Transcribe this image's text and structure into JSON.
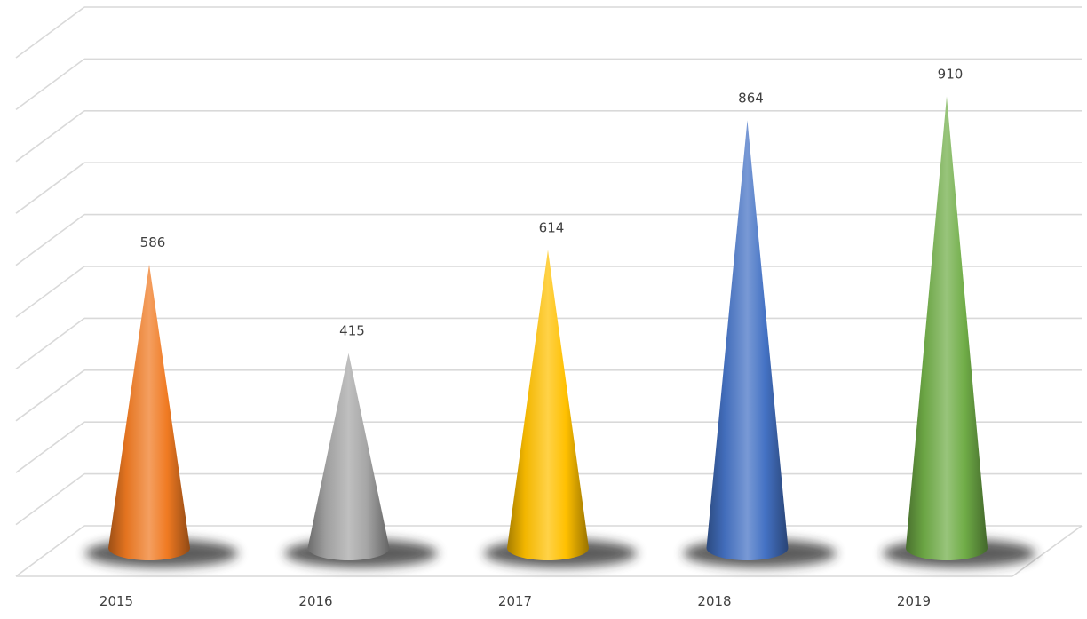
{
  "chart_data": {
    "type": "bar",
    "style": "3d-cone",
    "categories": [
      "2015",
      "2016",
      "2017",
      "2018",
      "2019"
    ],
    "series": [
      {
        "values": [
          586,
          415,
          614,
          864,
          910
        ],
        "colors": [
          "#f07a22",
          "#a6a6a6",
          "#ffc000",
          "#4472c4",
          "#70ad47"
        ]
      }
    ],
    "data_labels": [
      "586",
      "415",
      "614",
      "864",
      "910"
    ],
    "title": "",
    "xlabel": "",
    "ylabel": "",
    "ylim": [
      0,
      1000
    ],
    "grid": true,
    "legend": "none"
  }
}
